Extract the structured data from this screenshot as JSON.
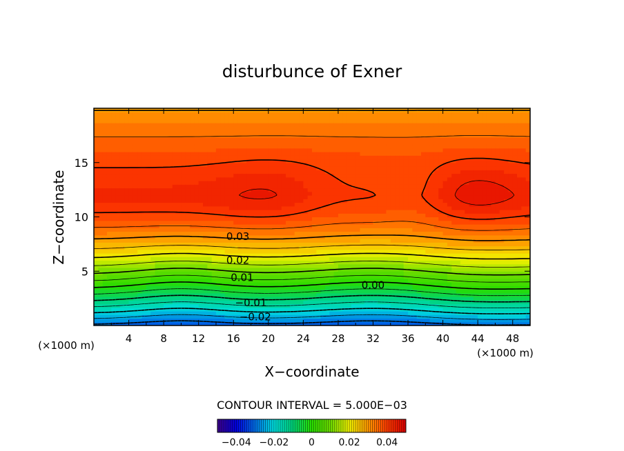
{
  "chart_data": {
    "type": "contour",
    "title": "disturbunce of Exner",
    "xlabel": "X−coordinate",
    "ylabel": "Z−coordinate",
    "x_unit": "(×1000 m)",
    "x_unit_right": "(×1000 m)",
    "xlim": [
      0,
      50
    ],
    "ylim": [
      0,
      20
    ],
    "xticks": [
      "4",
      "8",
      "12",
      "16",
      "20",
      "24",
      "28",
      "32",
      "36",
      "40",
      "44",
      "48"
    ],
    "yticks": [
      "5",
      "10",
      "15"
    ],
    "contour_interval_label": "CONTOUR INTERVAL = 5.000E−03",
    "contour_interval": 0.005,
    "contour_labels": [
      {
        "text": "0.03",
        "x": 16.5,
        "y": 8.2
      },
      {
        "text": "0.02",
        "x": 16.5,
        "y": 6.0
      },
      {
        "text": "0.01",
        "x": 17.0,
        "y": 4.4
      },
      {
        "text": "0.00",
        "x": 32.0,
        "y": 3.7
      },
      {
        "text": "−0.01",
        "x": 18.0,
        "y": 2.1
      },
      {
        "text": "−0.02",
        "x": 18.5,
        "y": 0.8
      }
    ],
    "field": {
      "min": -0.03,
      "max": 0.045,
      "description_values": "rises from about -0.03 at z=0 to a maximum near 0.045 at z=12, decreasing slightly to 0.04 at top; two maxima centered near x=22 and x=43"
    },
    "colorbar": {
      "ticks": [
        "−0.04",
        "−0.02",
        "0",
        "0.02",
        "0.04"
      ],
      "range": [
        -0.05,
        0.05
      ]
    },
    "colors": {
      "low": "#1060e0",
      "mid": "#00e000",
      "high": "#ff2000"
    }
  }
}
